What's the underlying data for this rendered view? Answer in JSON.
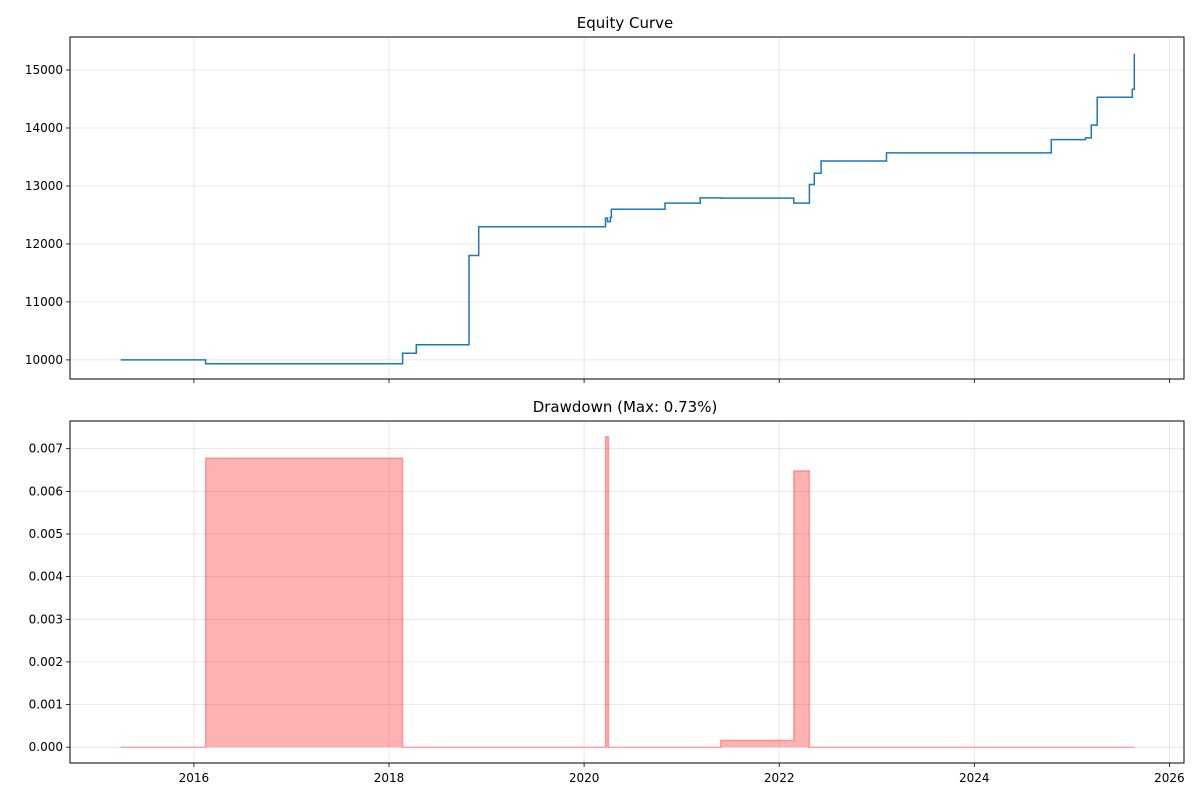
{
  "chart_data": [
    {
      "type": "line",
      "title": "Equity Curve",
      "xlabel": "",
      "ylabel": "",
      "x_tick_labels": [],
      "y_ticks": [
        10000,
        11000,
        12000,
        13000,
        14000,
        15000
      ],
      "ylim": [
        9670,
        15570
      ],
      "grid": true,
      "color": "#1f77b4",
      "series": [
        {
          "points": [
            [
              "2015.25",
              10000
            ],
            [
              "2016.12",
              10000
            ],
            [
              "2016.12",
              9932
            ],
            [
              "2018.14",
              9932
            ],
            [
              "2018.14",
              10115
            ],
            [
              "2018.28",
              10115
            ],
            [
              "2018.28",
              10262
            ],
            [
              "2018.82",
              10262
            ],
            [
              "2018.82",
              11800
            ],
            [
              "2018.92",
              11800
            ],
            [
              "2018.92",
              12295
            ],
            [
              "2020.22",
              12295
            ],
            [
              "2020.22",
              12445
            ],
            [
              "2020.24",
              12445
            ],
            [
              "2020.24",
              12385
            ],
            [
              "2020.27",
              12385
            ],
            [
              "2020.27",
              12460
            ],
            [
              "2020.28",
              12460
            ],
            [
              "2020.28",
              12600
            ],
            [
              "2020.83",
              12600
            ],
            [
              "2020.83",
              12705
            ],
            [
              "2021.19",
              12705
            ],
            [
              "2021.19",
              12795
            ],
            [
              "2021.40",
              12795
            ],
            [
              "2021.40",
              12790
            ],
            [
              "2022.15",
              12790
            ],
            [
              "2022.15",
              12705
            ],
            [
              "2022.31",
              12705
            ],
            [
              "2022.31",
              13025
            ],
            [
              "2022.36",
              13025
            ],
            [
              "2022.36",
              13220
            ],
            [
              "2022.43",
              13220
            ],
            [
              "2022.43",
              13430
            ],
            [
              "2023.10",
              13430
            ],
            [
              "2023.10",
              13570
            ],
            [
              "2024.79",
              13570
            ],
            [
              "2024.79",
              13800
            ],
            [
              "2025.14",
              13800
            ],
            [
              "2025.14",
              13830
            ],
            [
              "2025.20",
              13830
            ],
            [
              "2025.20",
              14050
            ],
            [
              "2025.26",
              14050
            ],
            [
              "2025.26",
              14530
            ],
            [
              "2025.62",
              14530
            ],
            [
              "2025.62",
              14670
            ],
            [
              "2025.64",
              14670
            ],
            [
              "2025.64",
              15280
            ]
          ]
        }
      ]
    },
    {
      "type": "area",
      "title": "Drawdown (Max: 0.73%)",
      "xlabel": "",
      "ylabel": "",
      "x_tick_labels": [
        "2016",
        "2018",
        "2020",
        "2022",
        "2024",
        "2026"
      ],
      "x_ticks": [
        2016,
        2018,
        2020,
        2022,
        2024,
        2026
      ],
      "xlim": [
        2014.73,
        2026.15
      ],
      "y_ticks": [
        0.0,
        0.001,
        0.002,
        0.003,
        0.004,
        0.005,
        0.006,
        0.007
      ],
      "y_tick_labels": [
        "0.000",
        "0.001",
        "0.002",
        "0.003",
        "0.004",
        "0.005",
        "0.006",
        "0.007"
      ],
      "ylim": [
        -0.00037,
        0.00765
      ],
      "grid": true,
      "color": "#ff0000",
      "fill_opacity": 0.3,
      "series": [
        {
          "points": [
            [
              "2015.25",
              0
            ],
            [
              "2016.12",
              0
            ],
            [
              "2016.12",
              0.00678
            ],
            [
              "2018.14",
              0.00678
            ],
            [
              "2018.14",
              0
            ],
            [
              "2020.22",
              0
            ],
            [
              "2020.22",
              0.00728
            ],
            [
              "2020.25",
              0.00728
            ],
            [
              "2020.25",
              0
            ],
            [
              "2021.40",
              0
            ],
            [
              "2021.40",
              0.00016
            ],
            [
              "2022.15",
              0.00016
            ],
            [
              "2022.15",
              0.00648
            ],
            [
              "2022.31",
              0.00648
            ],
            [
              "2022.31",
              0
            ],
            [
              "2025.64",
              0
            ]
          ]
        }
      ]
    }
  ]
}
